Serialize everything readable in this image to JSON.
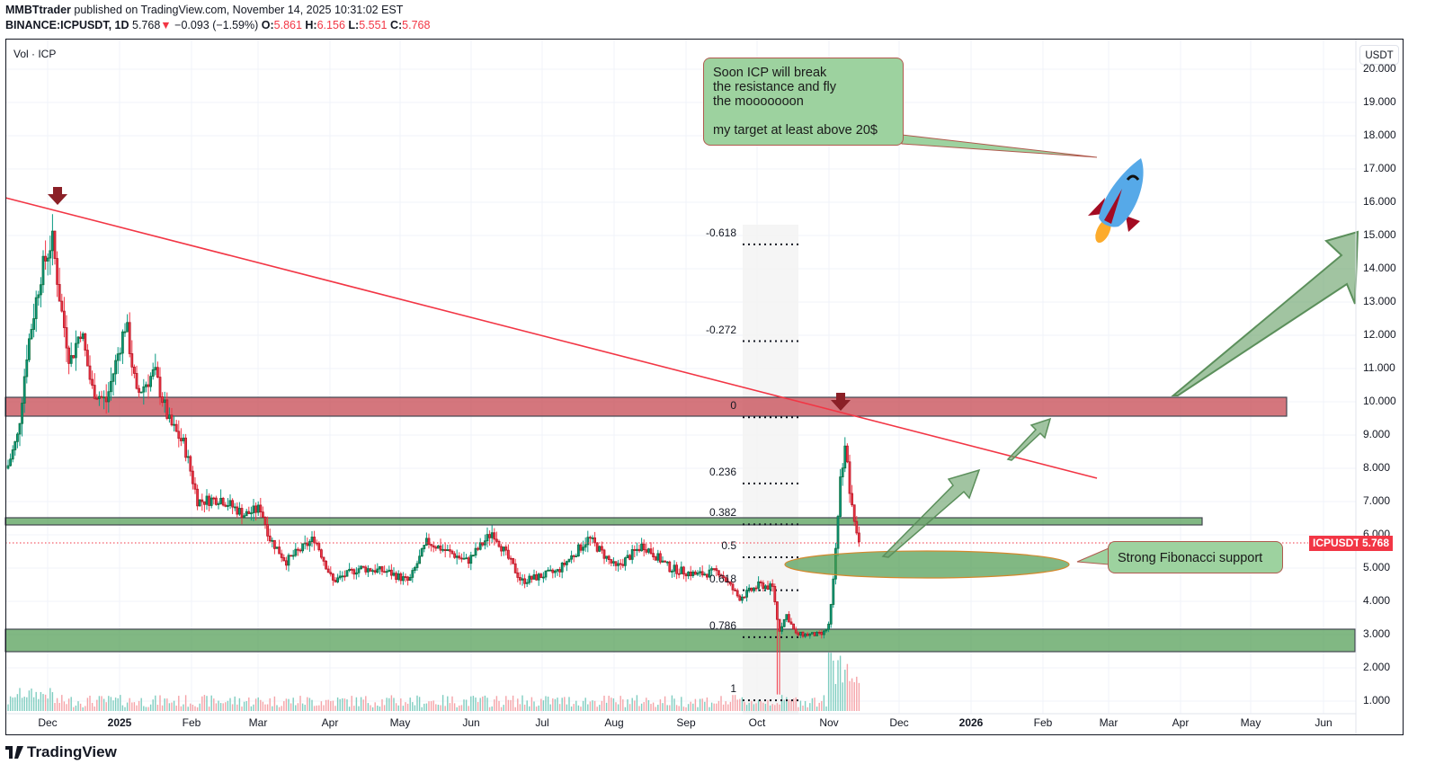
{
  "header": {
    "author": "MMBTtrader",
    "published_text": "published on TradingView.com, November 14, 2025 10:31:02 EST",
    "symbol": "BINANCE:ICPUSDT, 1D",
    "last": "5.768",
    "change": "−0.093 (−1.59%)",
    "o_label": "O:",
    "o": "5.861",
    "h_label": "H:",
    "h": "6.156",
    "l_label": "L:",
    "l": "5.551",
    "c_label": "C:",
    "c": "5.768"
  },
  "chart": {
    "volume_label": "Vol · ICP",
    "currency_button": "USDT",
    "price_tag_symbol": "ICPUSDT",
    "price_tag_value": "5.768"
  },
  "annotations": {
    "callout_main": "Soon ICP will break\nthe resistance and fly\nthe mooooooon\n\nmy target at least above 20$",
    "callout_support": "Strong Fibonacci support"
  },
  "fib_levels": [
    {
      "label": "-0.618",
      "price": 14.95
    },
    {
      "label": "-0.272",
      "price": 12.04
    },
    {
      "label": "0",
      "price": 9.75
    },
    {
      "label": "0.236",
      "price": 7.76
    },
    {
      "label": "0.382",
      "price": 6.53
    },
    {
      "label": "0.5",
      "price": 5.54
    },
    {
      "label": "0.618",
      "price": 4.55
    },
    {
      "label": "0.786",
      "price": 3.14
    },
    {
      "label": "1",
      "price": 1.24
    }
  ],
  "footer": {
    "brand": "TradingView"
  },
  "colors": {
    "up": "#089981",
    "down": "#f23645",
    "resistance_zone": "#c9545c",
    "support_zone": "#4c9a4f",
    "trendline": "#f23645"
  },
  "chart_data": {
    "type": "candlestick",
    "title": "BINANCE:ICPUSDT, 1D",
    "ylabel": "USDT",
    "ylim": [
      0.5,
      20.2
    ],
    "y_ticks": [
      "1.000",
      "2.000",
      "3.000",
      "4.000",
      "5.000",
      "6.000",
      "7.000",
      "8.000",
      "9.000",
      "10.000",
      "11.000",
      "12.000",
      "13.000",
      "14.000",
      "15.000",
      "16.000",
      "17.000",
      "18.000",
      "19.000",
      "20.000"
    ],
    "x_ticks": [
      "Dec",
      "2025",
      "Feb",
      "Mar",
      "Apr",
      "May",
      "Jun",
      "Jul",
      "Aug",
      "Sep",
      "Oct",
      "Nov",
      "Dec",
      "2026",
      "Feb",
      "Mar",
      "Apr",
      "May",
      "Jun"
    ],
    "approx_close_by_period": [
      {
        "period": "late Nov 2024",
        "close": 9.0
      },
      {
        "period": "early Dec 2024 (peak)",
        "close": 14.9,
        "high": 15.5
      },
      {
        "period": "mid Dec 2024",
        "close": 11.2
      },
      {
        "period": "early Jan 2025",
        "close": 12.4
      },
      {
        "period": "late Jan 2025",
        "close": 9.6
      },
      {
        "period": "mid Feb 2025",
        "close": 7.0
      },
      {
        "period": "early Mar 2025",
        "close": 6.6
      },
      {
        "period": "mid Mar 2025",
        "close": 5.2
      },
      {
        "period": "late Mar 2025",
        "close": 5.9
      },
      {
        "period": "mid Apr 2025",
        "close": 4.6
      },
      {
        "period": "mid May 2025",
        "close": 5.8
      },
      {
        "period": "early Jun 2025",
        "close": 6.0
      },
      {
        "period": "late Jun 2025",
        "close": 4.9
      },
      {
        "period": "late Jul 2025",
        "close": 5.9
      },
      {
        "period": "mid Aug 2025",
        "close": 5.3
      },
      {
        "period": "mid Sep 2025",
        "close": 4.9
      },
      {
        "period": "late Sep 2025",
        "close": 4.5
      },
      {
        "period": "10 Oct 2025 (wick low)",
        "close": 3.1,
        "low": 1.2
      },
      {
        "period": "late Oct 2025",
        "close": 3.0
      },
      {
        "period": "early Nov 2025 (spike)",
        "close": 8.8,
        "high": 9.5
      },
      {
        "period": "14 Nov 2025",
        "close": 5.768
      }
    ],
    "zones": [
      {
        "name": "resistance",
        "from": 9.6,
        "to": 10.15
      },
      {
        "name": "mid support",
        "from": 6.4,
        "to": 6.6
      },
      {
        "name": "strong support",
        "from": 2.45,
        "to": 3.15
      }
    ],
    "trendline": {
      "from": {
        "date": "mid Nov 2024",
        "price": 16.1
      },
      "to": {
        "date": "Mar 2026",
        "price": 7.7
      }
    },
    "last_price": 5.768,
    "legend": [
      "Vol · ICP"
    ]
  }
}
